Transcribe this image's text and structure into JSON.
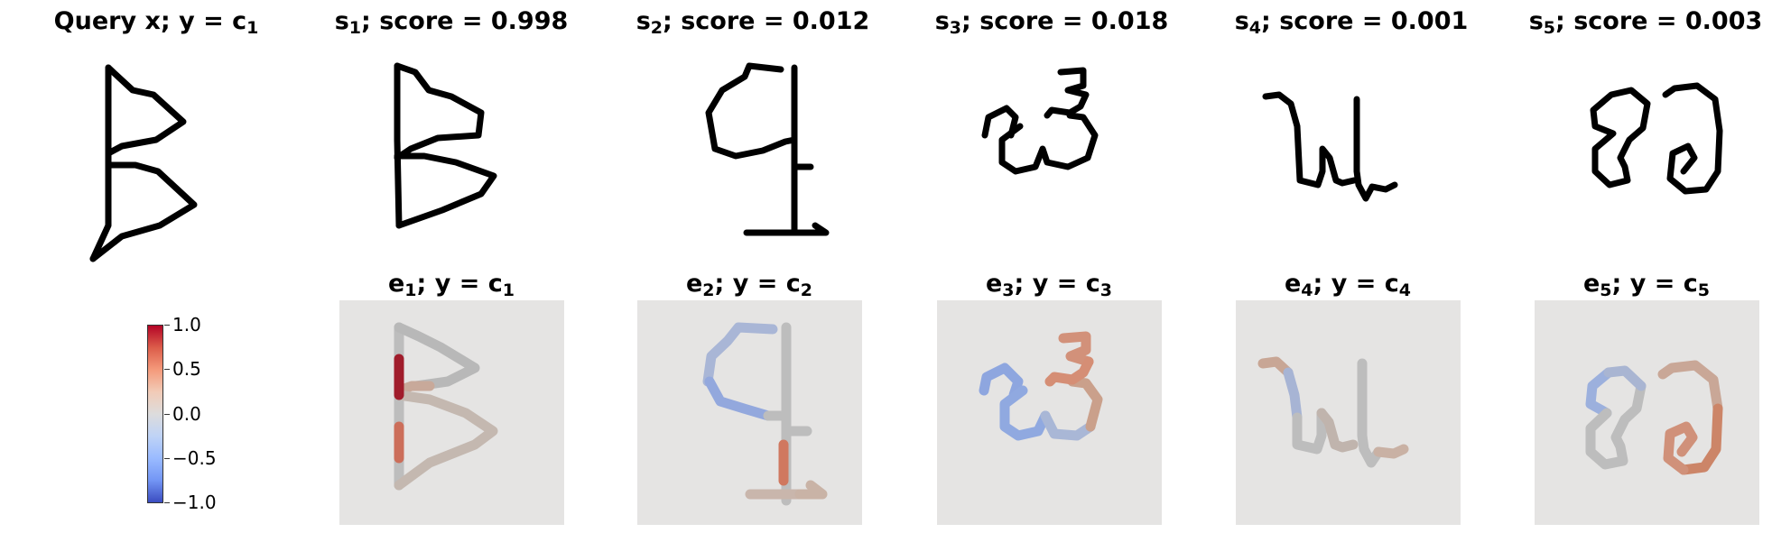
{
  "row1": {
    "query": {
      "main": "Query x; y = c",
      "sub": "1"
    },
    "s1": {
      "main": "s",
      "sub": "1",
      "rest": "; score = 0.998"
    },
    "s2": {
      "main": "s",
      "sub": "2",
      "rest": "; score = 0.012"
    },
    "s3": {
      "main": "s",
      "sub": "3",
      "rest": "; score = 0.018"
    },
    "s4": {
      "main": "s",
      "sub": "4",
      "rest": "; score = 0.001"
    },
    "s5": {
      "main": "s",
      "sub": "5",
      "rest": "; score = 0.003"
    }
  },
  "row2": {
    "e1": {
      "main": "e",
      "sub": "1",
      "mid": "; y = c",
      "sub2": "1"
    },
    "e2": {
      "main": "e",
      "sub": "2",
      "mid": "; y = c",
      "sub2": "2"
    },
    "e3": {
      "main": "e",
      "sub": "3",
      "mid": "; y = c",
      "sub2": "3"
    },
    "e4": {
      "main": "e",
      "sub": "4",
      "mid": "; y = c",
      "sub2": "4"
    },
    "e5": {
      "main": "e",
      "sub": "5",
      "mid": "; y = c",
      "sub2": "5"
    }
  },
  "colorbar": {
    "ticks": [
      "1.0",
      "0.5",
      "0.0",
      "−0.5",
      "−1.0"
    ],
    "colormap": "coolwarm",
    "colors": {
      "max": "#b40426",
      "mid": "#dddcdc",
      "min": "#3b4cc0"
    }
  }
}
